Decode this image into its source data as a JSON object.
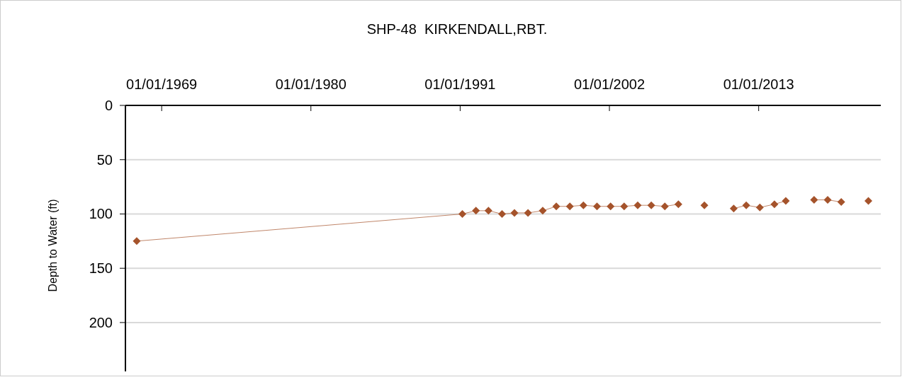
{
  "chart_data": {
    "type": "line",
    "title": "SHP-48  KIRKENDALL,RBT.",
    "ylabel": "Depth to Water (ft)",
    "x": [
      "1967-03",
      "1991-03",
      "1992-03",
      "1993-02",
      "1994-02",
      "1995-01",
      "1996-01",
      "1997-02",
      "1998-02",
      "1999-02",
      "2000-02",
      "2001-02",
      "2002-02",
      "2003-02",
      "2004-02",
      "2005-02",
      "2006-02",
      "2007-02",
      "2008-02",
      "2009-01",
      "2010-03",
      "2011-03",
      "2012-02",
      "2013-02",
      "2014-03",
      "2015-01",
      "2016-02",
      "2017-02",
      "2018-02",
      "2019-02",
      "2020-02",
      "2021-02"
    ],
    "series": [
      {
        "color": "#a5532b",
        "values": [
          125,
          100,
          97,
          97,
          100,
          99,
          99,
          97,
          93,
          93,
          92,
          93,
          93,
          93,
          92,
          92,
          93,
          91,
          null,
          92,
          null,
          95,
          92,
          94,
          91,
          88,
          null,
          87,
          87,
          89,
          null,
          88
        ]
      }
    ],
    "xlim": [
      "1966-05",
      "2022-01"
    ],
    "xticks": [
      {
        "value": "1969-01-01",
        "label": "01/01/1969"
      },
      {
        "value": "1980-01-01",
        "label": "01/01/1980"
      },
      {
        "value": "1991-01-01",
        "label": "01/01/1991"
      },
      {
        "value": "2002-01-01",
        "label": "01/01/2002"
      },
      {
        "value": "2013-01-01",
        "label": "01/01/2013"
      }
    ],
    "ylim": [
      245,
      0
    ],
    "yticks": [
      0,
      50,
      100,
      150,
      200
    ],
    "grid": "y",
    "marker": "diamond",
    "line_style": "solid"
  }
}
